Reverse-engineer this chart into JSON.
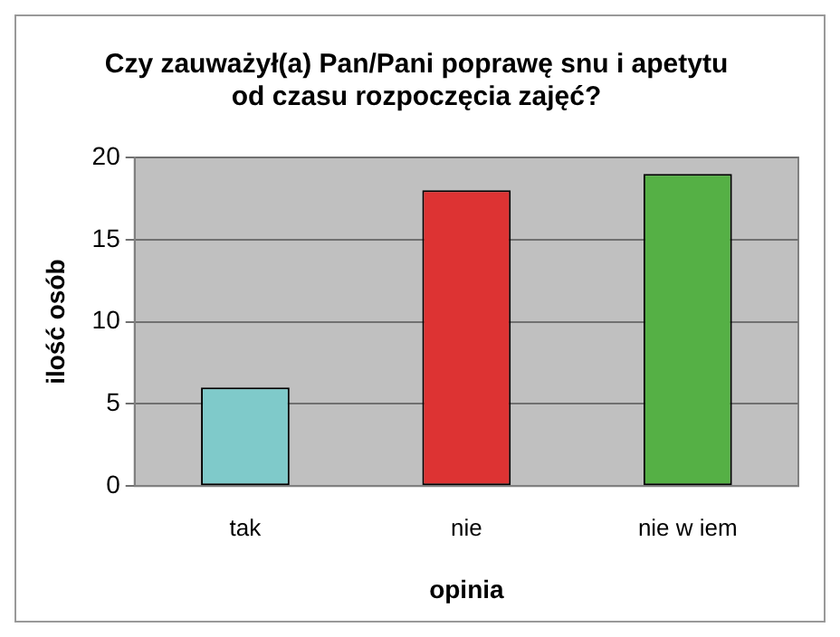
{
  "chart_data": {
    "type": "bar",
    "title": "Czy zauważył(a) Pan/Pani poprawę snu i apetytu\nod czasu rozpoczęcia zajęć?",
    "xlabel": "opinia",
    "ylabel": "ilość osób",
    "categories": [
      "tak",
      "nie",
      "nie w iem"
    ],
    "values": [
      6,
      18,
      19
    ],
    "colors": [
      "#7fcaca",
      "#dd3333",
      "#55b045"
    ],
    "ylim": [
      0,
      20
    ],
    "yticks": [
      0,
      5,
      10,
      15,
      20
    ],
    "grid": "y",
    "legend": false
  }
}
